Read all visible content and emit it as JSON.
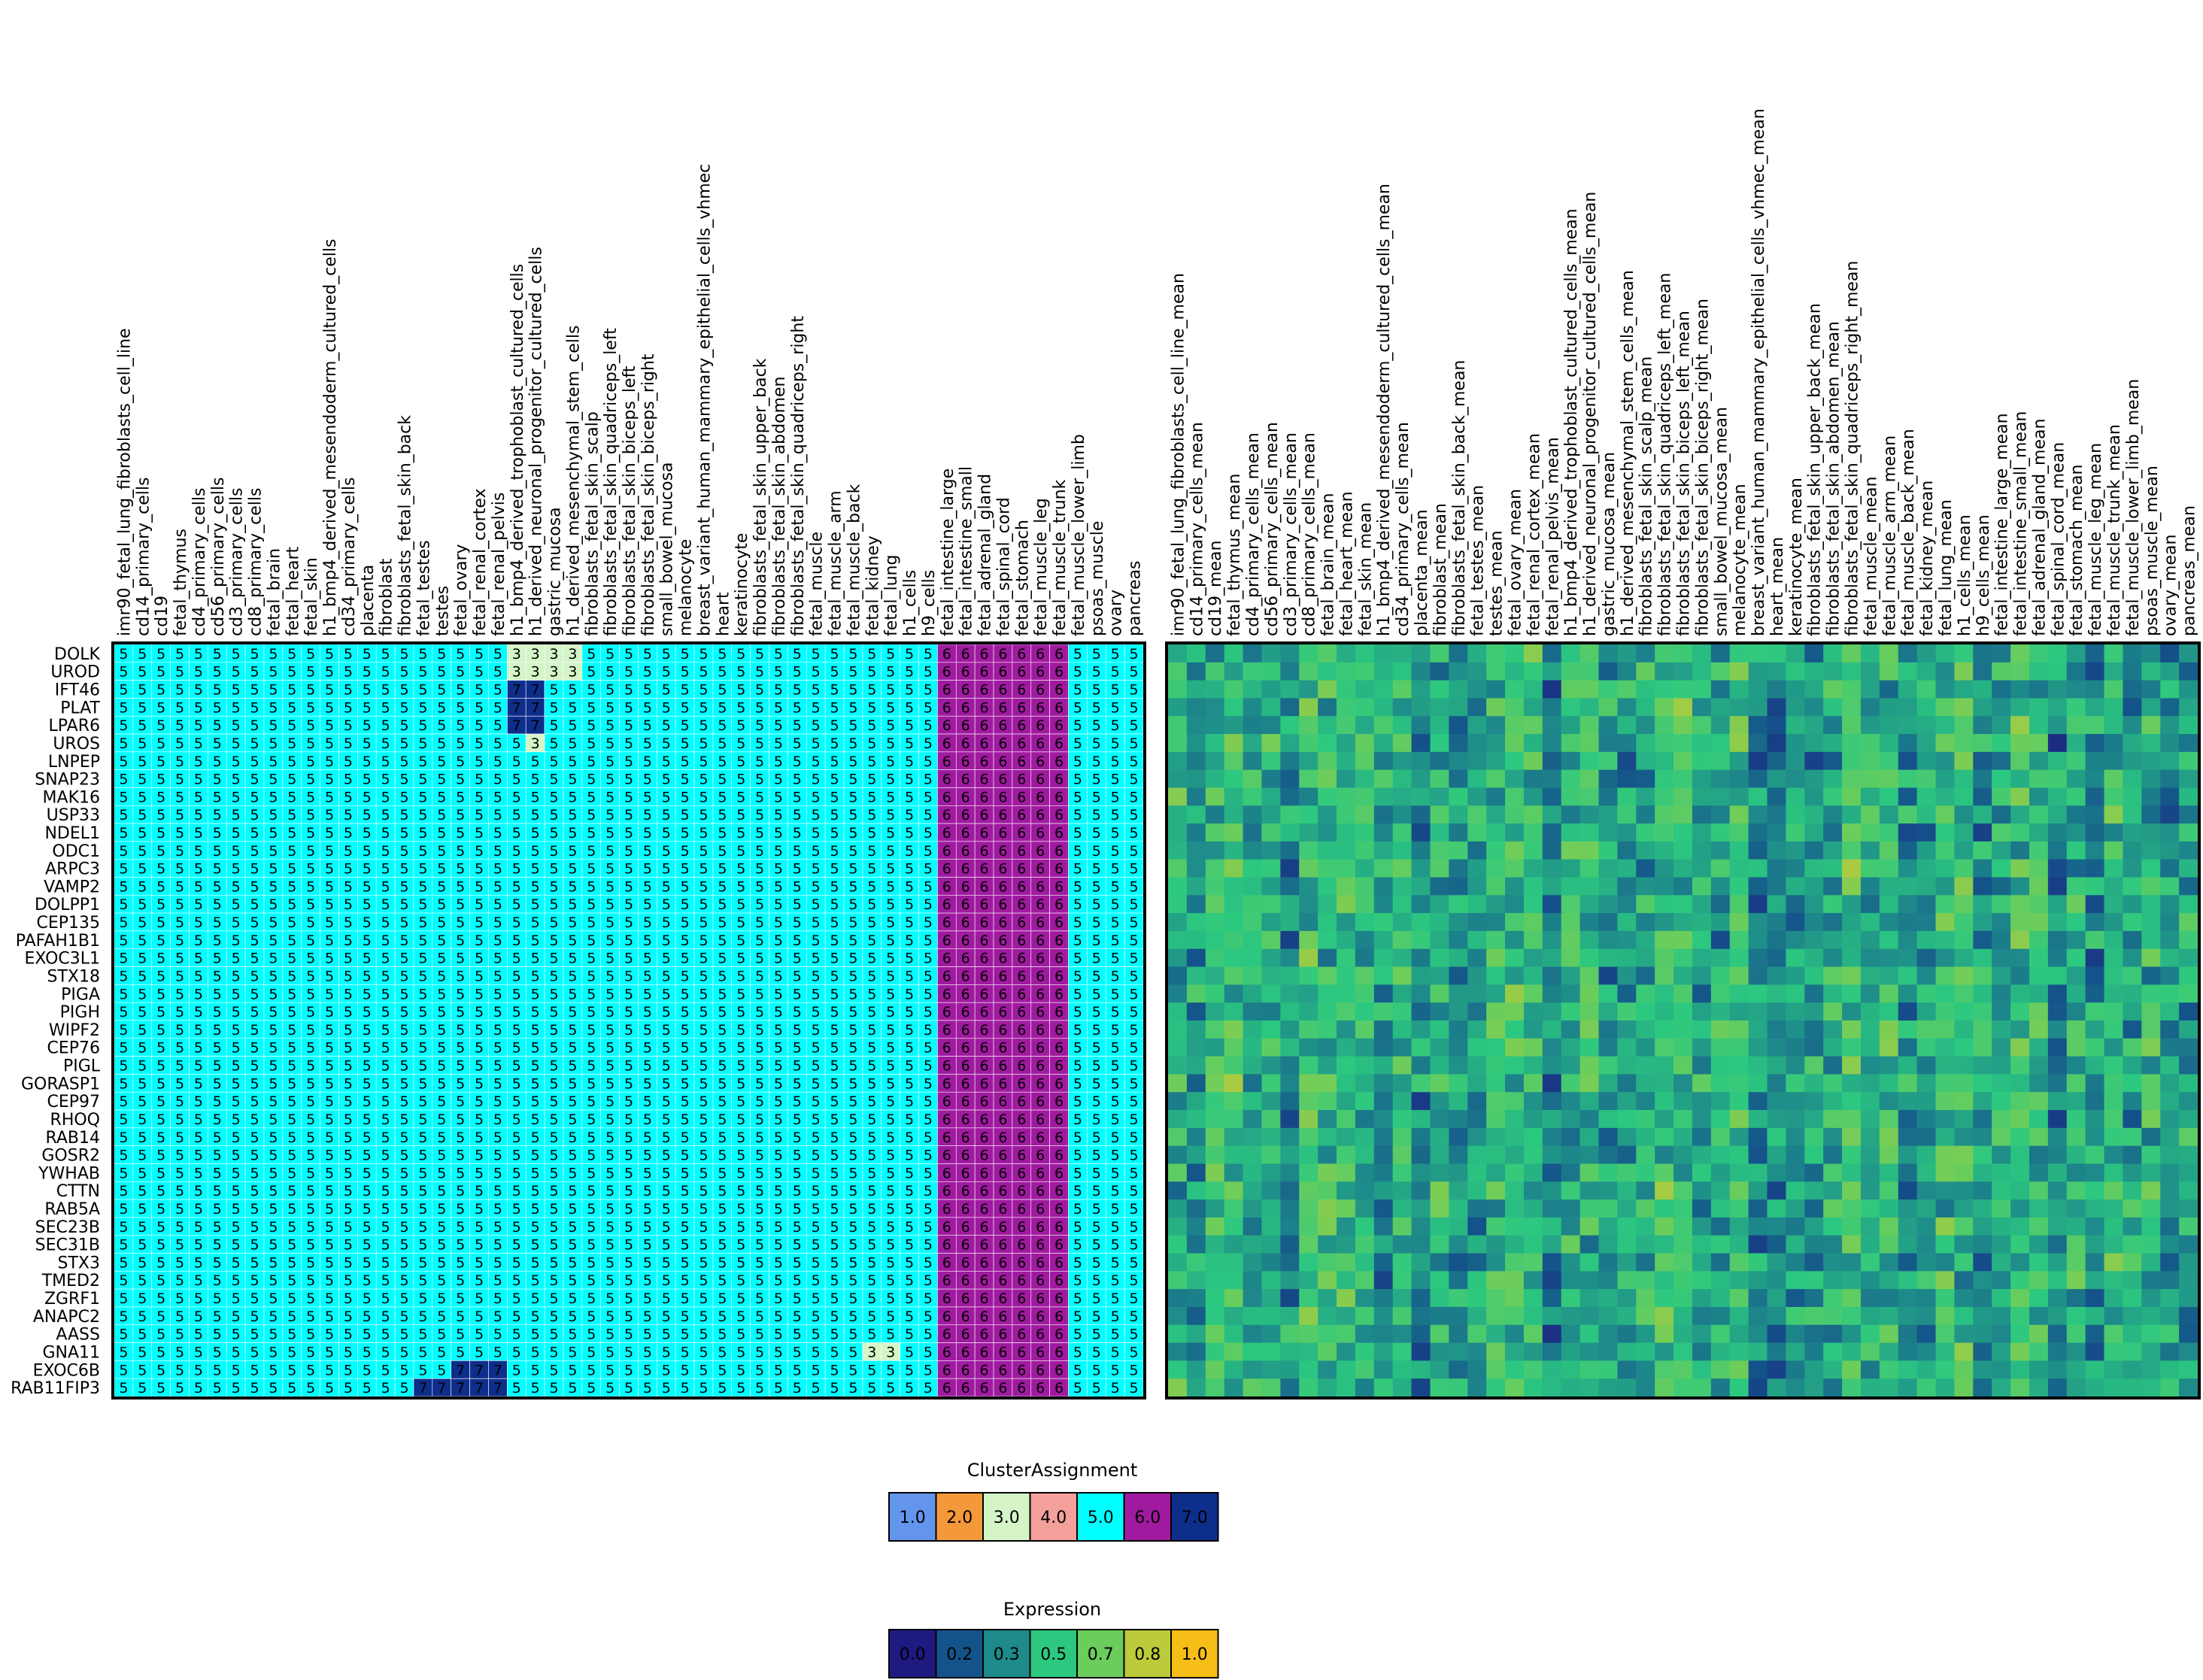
{
  "chart_data": [
    {
      "type": "heatmap",
      "title": "",
      "samples": [
        "imr90_fetal_lung_fibroblasts_cell_line",
        "cd14_primary_cells",
        "cd19",
        "fetal_thymus",
        "cd4_primary_cells",
        "cd56_primary_cells",
        "cd3_primary_cells",
        "cd8_primary_cells",
        "fetal_brain",
        "fetal_heart",
        "fetal_skin",
        "h1_bmp4_derived_mesendoderm_cultured_cells",
        "cd34_primary_cells",
        "placenta",
        "fibroblast",
        "fibroblasts_fetal_skin_back",
        "fetal_testes",
        "testes",
        "fetal_ovary",
        "fetal_renal_cortex",
        "fetal_renal_pelvis",
        "h1_bmp4_derived_trophoblast_cultured_cells",
        "h1_derived_neuronal_progenitor_cultured_cells",
        "gastric_mucosa",
        "h1_derived_mesenchymal_stem_cells",
        "fibroblasts_fetal_skin_scalp",
        "fibroblasts_fetal_skin_quadriceps_left",
        "fibroblasts_fetal_skin_biceps_left",
        "fibroblasts_fetal_skin_biceps_right",
        "small_bowel_mucosa",
        "melanocyte",
        "breast_variant_human_mammary_epithelial_cells_vhmec",
        "heart",
        "keratinocyte",
        "fibroblasts_fetal_skin_upper_back",
        "fibroblasts_fetal_skin_abdomen",
        "fibroblasts_fetal_skin_quadriceps_right",
        "fetal_muscle",
        "fetal_muscle_arm",
        "fetal_muscle_back",
        "fetal_kidney",
        "fetal_lung",
        "h1_cells",
        "h9_cells",
        "fetal_intestine_large",
        "fetal_intestine_small",
        "fetal_adrenal_gland",
        "fetal_spinal_cord",
        "fetal_stomach",
        "fetal_muscle_leg",
        "fetal_muscle_trunk",
        "fetal_muscle_lower_limb",
        "psoas_muscle",
        "ovary",
        "pancreas"
      ],
      "genes": [
        "DOLK",
        "UROD",
        "IFT46",
        "PLAT",
        "LPAR6",
        "UROS",
        "LNPEP",
        "SNAP23",
        "MAK16",
        "USP33",
        "NDEL1",
        "ODC1",
        "ARPC3",
        "VAMP2",
        "DOLPP1",
        "CEP135",
        "PAFAH1B1",
        "EXOC3L1",
        "STX18",
        "PIGA",
        "PIGH",
        "WIPF2",
        "CEP76",
        "PIGL",
        "GORASP1",
        "CEP97",
        "RHOQ",
        "RAB14",
        "GOSR2",
        "YWHAB",
        "CTTN",
        "RAB5A",
        "SEC23B",
        "SEC31B",
        "STX3",
        "TMED2",
        "ZGRF1",
        "ANAPC2",
        "AASS",
        "GNA11",
        "EXOC6B",
        "RAB11FIP3"
      ],
      "default_value": 5,
      "column_overrides": {
        "44": 6,
        "45": 6,
        "46": 6,
        "47": 6,
        "48": 6,
        "49": 6,
        "50": 6
      },
      "cell_overrides": [
        {
          "gene": "DOLK",
          "samples": [
            21,
            22,
            23,
            24
          ],
          "value": 3
        },
        {
          "gene": "UROD",
          "samples": [
            21,
            22,
            23,
            24
          ],
          "value": 3
        },
        {
          "gene": "IFT46",
          "samples": [
            21,
            22
          ],
          "value": 7
        },
        {
          "gene": "PLAT",
          "samples": [
            21,
            22
          ],
          "value": 7
        },
        {
          "gene": "LPAR6",
          "samples": [
            21,
            22
          ],
          "value": 7
        },
        {
          "gene": "UROS",
          "samples": [
            22
          ],
          "value": 3
        },
        {
          "gene": "GNA11",
          "samples": [
            40,
            41
          ],
          "value": 3
        },
        {
          "gene": "EXOC6B",
          "samples": [
            18,
            19,
            20
          ],
          "value": 7
        },
        {
          "gene": "RAB11FIP3",
          "samples": [
            16,
            17,
            18,
            19,
            20
          ],
          "value": 7
        }
      ],
      "xlabel": "",
      "ylabel": ""
    },
    {
      "type": "heatmap",
      "title": "",
      "samples": [
        "imr90_fetal_lung_fibroblasts_cell_line_mean",
        "cd14_primary_cells_mean",
        "cd19_mean",
        "fetal_thymus_mean",
        "cd4_primary_cells_mean",
        "cd56_primary_cells_mean",
        "cd3_primary_cells_mean",
        "cd8_primary_cells_mean",
        "fetal_brain_mean",
        "fetal_heart_mean",
        "fetal_skin_mean",
        "h1_bmp4_derived_mesendoderm_cultured_cells_mean",
        "cd34_primary_cells_mean",
        "placenta_mean",
        "fibroblast_mean",
        "fibroblasts_fetal_skin_back_mean",
        "fetal_testes_mean",
        "testes_mean",
        "fetal_ovary_mean",
        "fetal_renal_cortex_mean",
        "fetal_renal_pelvis_mean",
        "h1_bmp4_derived_trophoblast_cultured_cells_mean",
        "h1_derived_neuronal_progenitor_cultured_cells_mean",
        "gastric_mucosa_mean",
        "h1_derived_mesenchymal_stem_cells_mean",
        "fibroblasts_fetal_skin_scalp_mean",
        "fibroblasts_fetal_skin_quadriceps_left_mean",
        "fibroblasts_fetal_skin_biceps_left_mean",
        "fibroblasts_fetal_skin_biceps_right_mean",
        "small_bowel_mucosa_mean",
        "melanocyte_mean",
        "breast_variant_human_mammary_epithelial_cells_vhmec_mean",
        "heart_mean",
        "keratinocyte_mean",
        "fibroblasts_fetal_skin_upper_back_mean",
        "fibroblasts_fetal_skin_abdomen_mean",
        "fibroblasts_fetal_skin_quadriceps_right_mean",
        "fetal_muscle_mean",
        "fetal_muscle_arm_mean",
        "fetal_muscle_back_mean",
        "fetal_kidney_mean",
        "fetal_lung_mean",
        "h1_cells_mean",
        "h9_cells_mean",
        "fetal_intestine_large_mean",
        "fetal_intestine_small_mean",
        "fetal_adrenal_gland_mean",
        "fetal_spinal_cord_mean",
        "fetal_stomach_mean",
        "fetal_muscle_leg_mean",
        "fetal_muscle_trunk_mean",
        "fetal_muscle_lower_limb_mean",
        "psoas_muscle_mean",
        "ovary_mean",
        "pancreas_mean"
      ],
      "genes": [
        "DOLK",
        "UROD",
        "IFT46",
        "PLAT",
        "LPAR6",
        "UROS",
        "LNPEP",
        "SNAP23",
        "MAK16",
        "USP33",
        "NDEL1",
        "ODC1",
        "ARPC3",
        "VAMP2",
        "DOLPP1",
        "CEP135",
        "PAFAH1B1",
        "EXOC3L1",
        "STX18",
        "PIGA",
        "PIGH",
        "WIPF2",
        "CEP76",
        "PIGL",
        "GORASP1",
        "CEP97",
        "RHOQ",
        "RAB14",
        "GOSR2",
        "YWHAB",
        "CTTN",
        "RAB5A",
        "SEC23B",
        "SEC31B",
        "STX3",
        "TMED2",
        "ZGRF1",
        "ANAPC2",
        "AASS",
        "GNA11",
        "EXOC6B",
        "RAB11FIP3"
      ],
      "value_range": [
        0.0,
        1.0
      ],
      "note_values": "approximate; values not printed in the figure"
    }
  ],
  "legends": {
    "cluster": {
      "title": "ClusterAssignment",
      "entries": [
        {
          "label": "1.0",
          "color": "#6495ED"
        },
        {
          "label": "2.0",
          "color": "#F4993A"
        },
        {
          "label": "3.0",
          "color": "#D5F5C8"
        },
        {
          "label": "4.0",
          "color": "#F4A09C"
        },
        {
          "label": "5.0",
          "color": "#00FFFF"
        },
        {
          "label": "6.0",
          "color": "#A01AA0"
        },
        {
          "label": "7.0",
          "color": "#0E2E8C"
        }
      ]
    },
    "expression": {
      "title": "Expression",
      "entries": [
        {
          "label": "0.0",
          "color": "#1F1A80"
        },
        {
          "label": "0.2",
          "color": "#14538A"
        },
        {
          "label": "0.3",
          "color": "#1E8A8A"
        },
        {
          "label": "0.5",
          "color": "#2CC880"
        },
        {
          "label": "0.7",
          "color": "#6ACD5C"
        },
        {
          "label": "0.8",
          "color": "#BCCB3A"
        },
        {
          "label": "1.0",
          "color": "#F7BE17"
        }
      ]
    }
  }
}
